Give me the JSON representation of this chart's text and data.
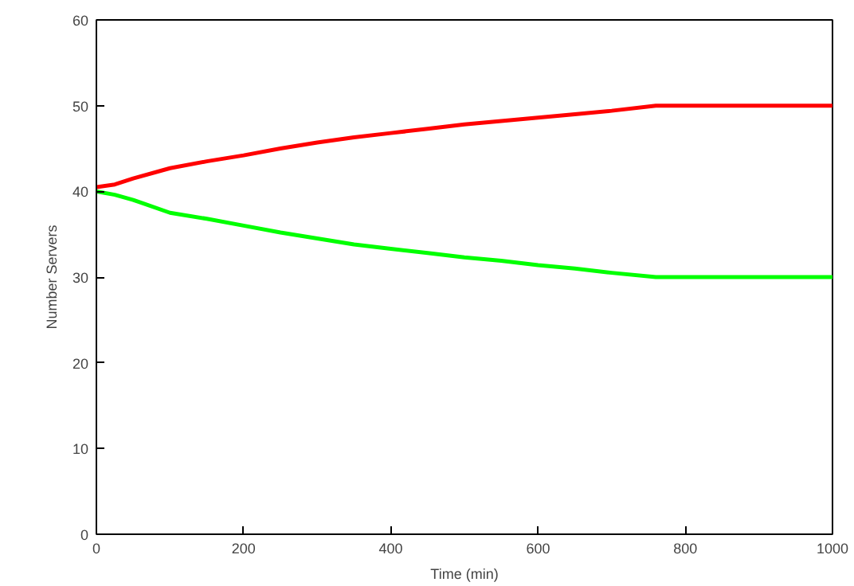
{
  "chart_data": {
    "type": "line",
    "xlabel": "Time (min)",
    "ylabel": "Number Servers",
    "x": [
      0,
      25,
      50,
      100,
      150,
      200,
      250,
      300,
      350,
      400,
      450,
      500,
      550,
      600,
      650,
      700,
      760,
      800,
      850,
      900,
      950,
      1000
    ],
    "series": [
      {
        "color": "#ff0000",
        "values": [
          40.5,
          40.8,
          41.5,
          42.7,
          43.5,
          44.2,
          45.0,
          45.7,
          46.3,
          46.8,
          47.3,
          47.8,
          48.2,
          48.6,
          49.0,
          49.4,
          50,
          50,
          50,
          50,
          50,
          50
        ]
      },
      {
        "color": "#00ff00",
        "values": [
          40,
          39.6,
          39,
          37.5,
          36.8,
          36,
          35.2,
          34.5,
          33.8,
          33.3,
          32.8,
          32.3,
          31.9,
          31.4,
          31.0,
          30.5,
          30,
          30,
          30,
          30,
          30,
          30
        ]
      }
    ],
    "xlim": [
      0,
      1000
    ],
    "xticks": [
      0,
      200,
      400,
      600,
      800,
      1000
    ],
    "ylim": [
      0,
      60
    ],
    "yticks": [
      0,
      10,
      20,
      30,
      40,
      50,
      60
    ],
    "grid": false
  }
}
